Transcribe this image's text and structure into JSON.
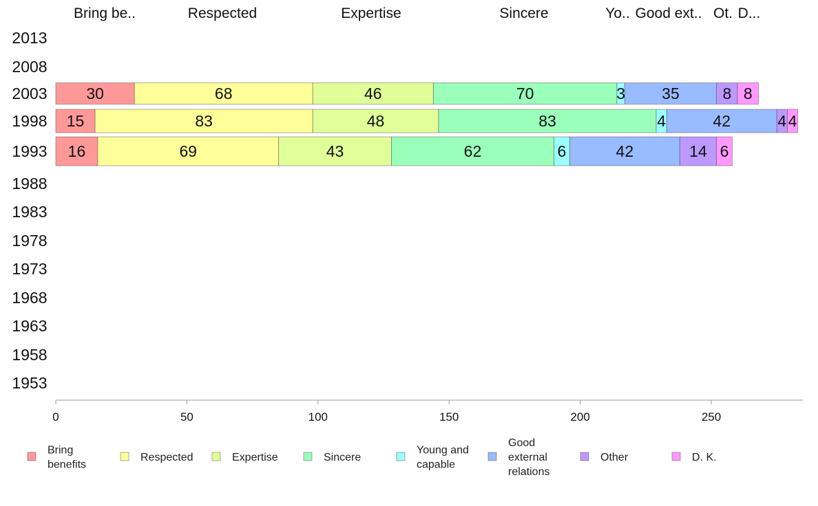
{
  "chart_data": {
    "type": "bar",
    "orientation": "horizontal",
    "stacked": true,
    "column_headers": [
      "Bring be..",
      "Respected",
      "Expertise",
      "Sincere",
      "Yo..",
      "Good ext..",
      "Ot.",
      "D..."
    ],
    "categories": [
      "2013",
      "2008",
      "2003",
      "1998",
      "1993",
      "1988",
      "1983",
      "1978",
      "1973",
      "1968",
      "1963",
      "1958",
      "1953"
    ],
    "series": [
      {
        "name": "Bring benefits",
        "legend_lines": [
          "Bring",
          "benefits"
        ],
        "color": "#ff9999",
        "values": [
          null,
          null,
          30,
          15,
          16,
          null,
          null,
          null,
          null,
          null,
          null,
          null,
          null
        ]
      },
      {
        "name": "Respected",
        "legend_lines": [
          "Respected"
        ],
        "color": "#ffff99",
        "values": [
          null,
          null,
          68,
          83,
          69,
          null,
          null,
          null,
          null,
          null,
          null,
          null,
          null
        ]
      },
      {
        "name": "Expertise",
        "legend_lines": [
          "Expertise"
        ],
        "color": "#e0ff99",
        "values": [
          null,
          null,
          46,
          48,
          43,
          null,
          null,
          null,
          null,
          null,
          null,
          null,
          null
        ]
      },
      {
        "name": "Sincere",
        "legend_lines": [
          "Sincere"
        ],
        "color": "#99ffbb",
        "values": [
          null,
          null,
          70,
          83,
          62,
          null,
          null,
          null,
          null,
          null,
          null,
          null,
          null
        ]
      },
      {
        "name": "Young and capable",
        "legend_lines": [
          "Young and",
          "capable"
        ],
        "color": "#99ffff",
        "values": [
          null,
          null,
          3,
          4,
          6,
          null,
          null,
          null,
          null,
          null,
          null,
          null,
          null
        ]
      },
      {
        "name": "Good external relations",
        "legend_lines": [
          "Good",
          "external",
          "relations"
        ],
        "color": "#99bbff",
        "values": [
          null,
          null,
          35,
          42,
          42,
          null,
          null,
          null,
          null,
          null,
          null,
          null,
          null
        ]
      },
      {
        "name": "Other",
        "legend_lines": [
          "Other"
        ],
        "color": "#bb99ff",
        "values": [
          null,
          null,
          8,
          4,
          14,
          null,
          null,
          null,
          null,
          null,
          null,
          null,
          null
        ]
      },
      {
        "name": "D. K.",
        "legend_lines": [
          "D. K."
        ],
        "color": "#ff99ff",
        "values": [
          null,
          null,
          8,
          4,
          6,
          null,
          null,
          null,
          null,
          null,
          null,
          null,
          null
        ]
      }
    ],
    "xlim": [
      0,
      285
    ],
    "xticks": [
      0,
      50,
      100,
      150,
      200,
      250
    ],
    "grid": false,
    "legend_position": "bottom"
  }
}
